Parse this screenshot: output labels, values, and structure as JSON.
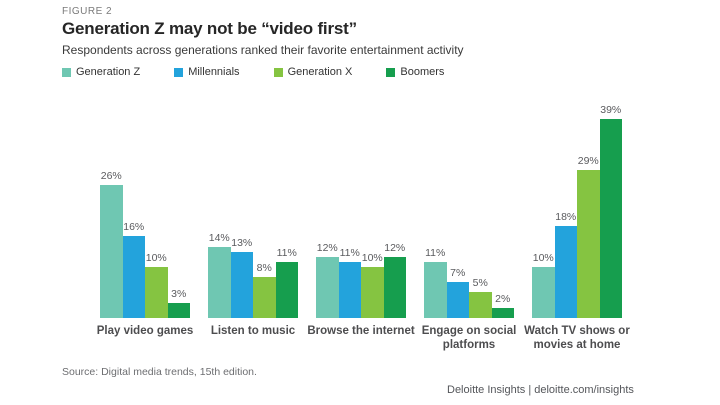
{
  "header": {
    "figure_label": "FIGURE 2",
    "title": "Generation Z may not be “video first”",
    "subtitle": "Respondents across generations ranked their favorite entertainment activity"
  },
  "chart_data": {
    "type": "bar",
    "title": "Generation Z may not be “video first”",
    "subtitle": "Respondents across generations ranked their favorite entertainment activity",
    "categories": [
      "Play video games",
      "Listen to music",
      "Browse the internet",
      "Engage on social platforms",
      "Watch TV shows or movies at home"
    ],
    "series": [
      {
        "name": "Generation Z",
        "color": "#6fc7b2",
        "values": [
          26,
          14,
          12,
          11,
          10
        ]
      },
      {
        "name": "Millennials",
        "color": "#23a3dc",
        "values": [
          16,
          13,
          11,
          7,
          18
        ]
      },
      {
        "name": "Generation X",
        "color": "#85c441",
        "values": [
          10,
          8,
          10,
          5,
          29
        ]
      },
      {
        "name": "Boomers",
        "color": "#169e4e",
        "values": [
          3,
          11,
          12,
          2,
          39
        ]
      }
    ],
    "value_suffix": "%",
    "data_labels": true,
    "xlabel": "",
    "ylabel": "",
    "ylim": [
      0,
      42
    ],
    "grid": false,
    "axes_shown": false,
    "legend_position": "top-left"
  },
  "footer": {
    "source": "Source: Digital media trends, 15th edition.",
    "branding": "Deloitte Insights | deloitte.com/insights"
  }
}
